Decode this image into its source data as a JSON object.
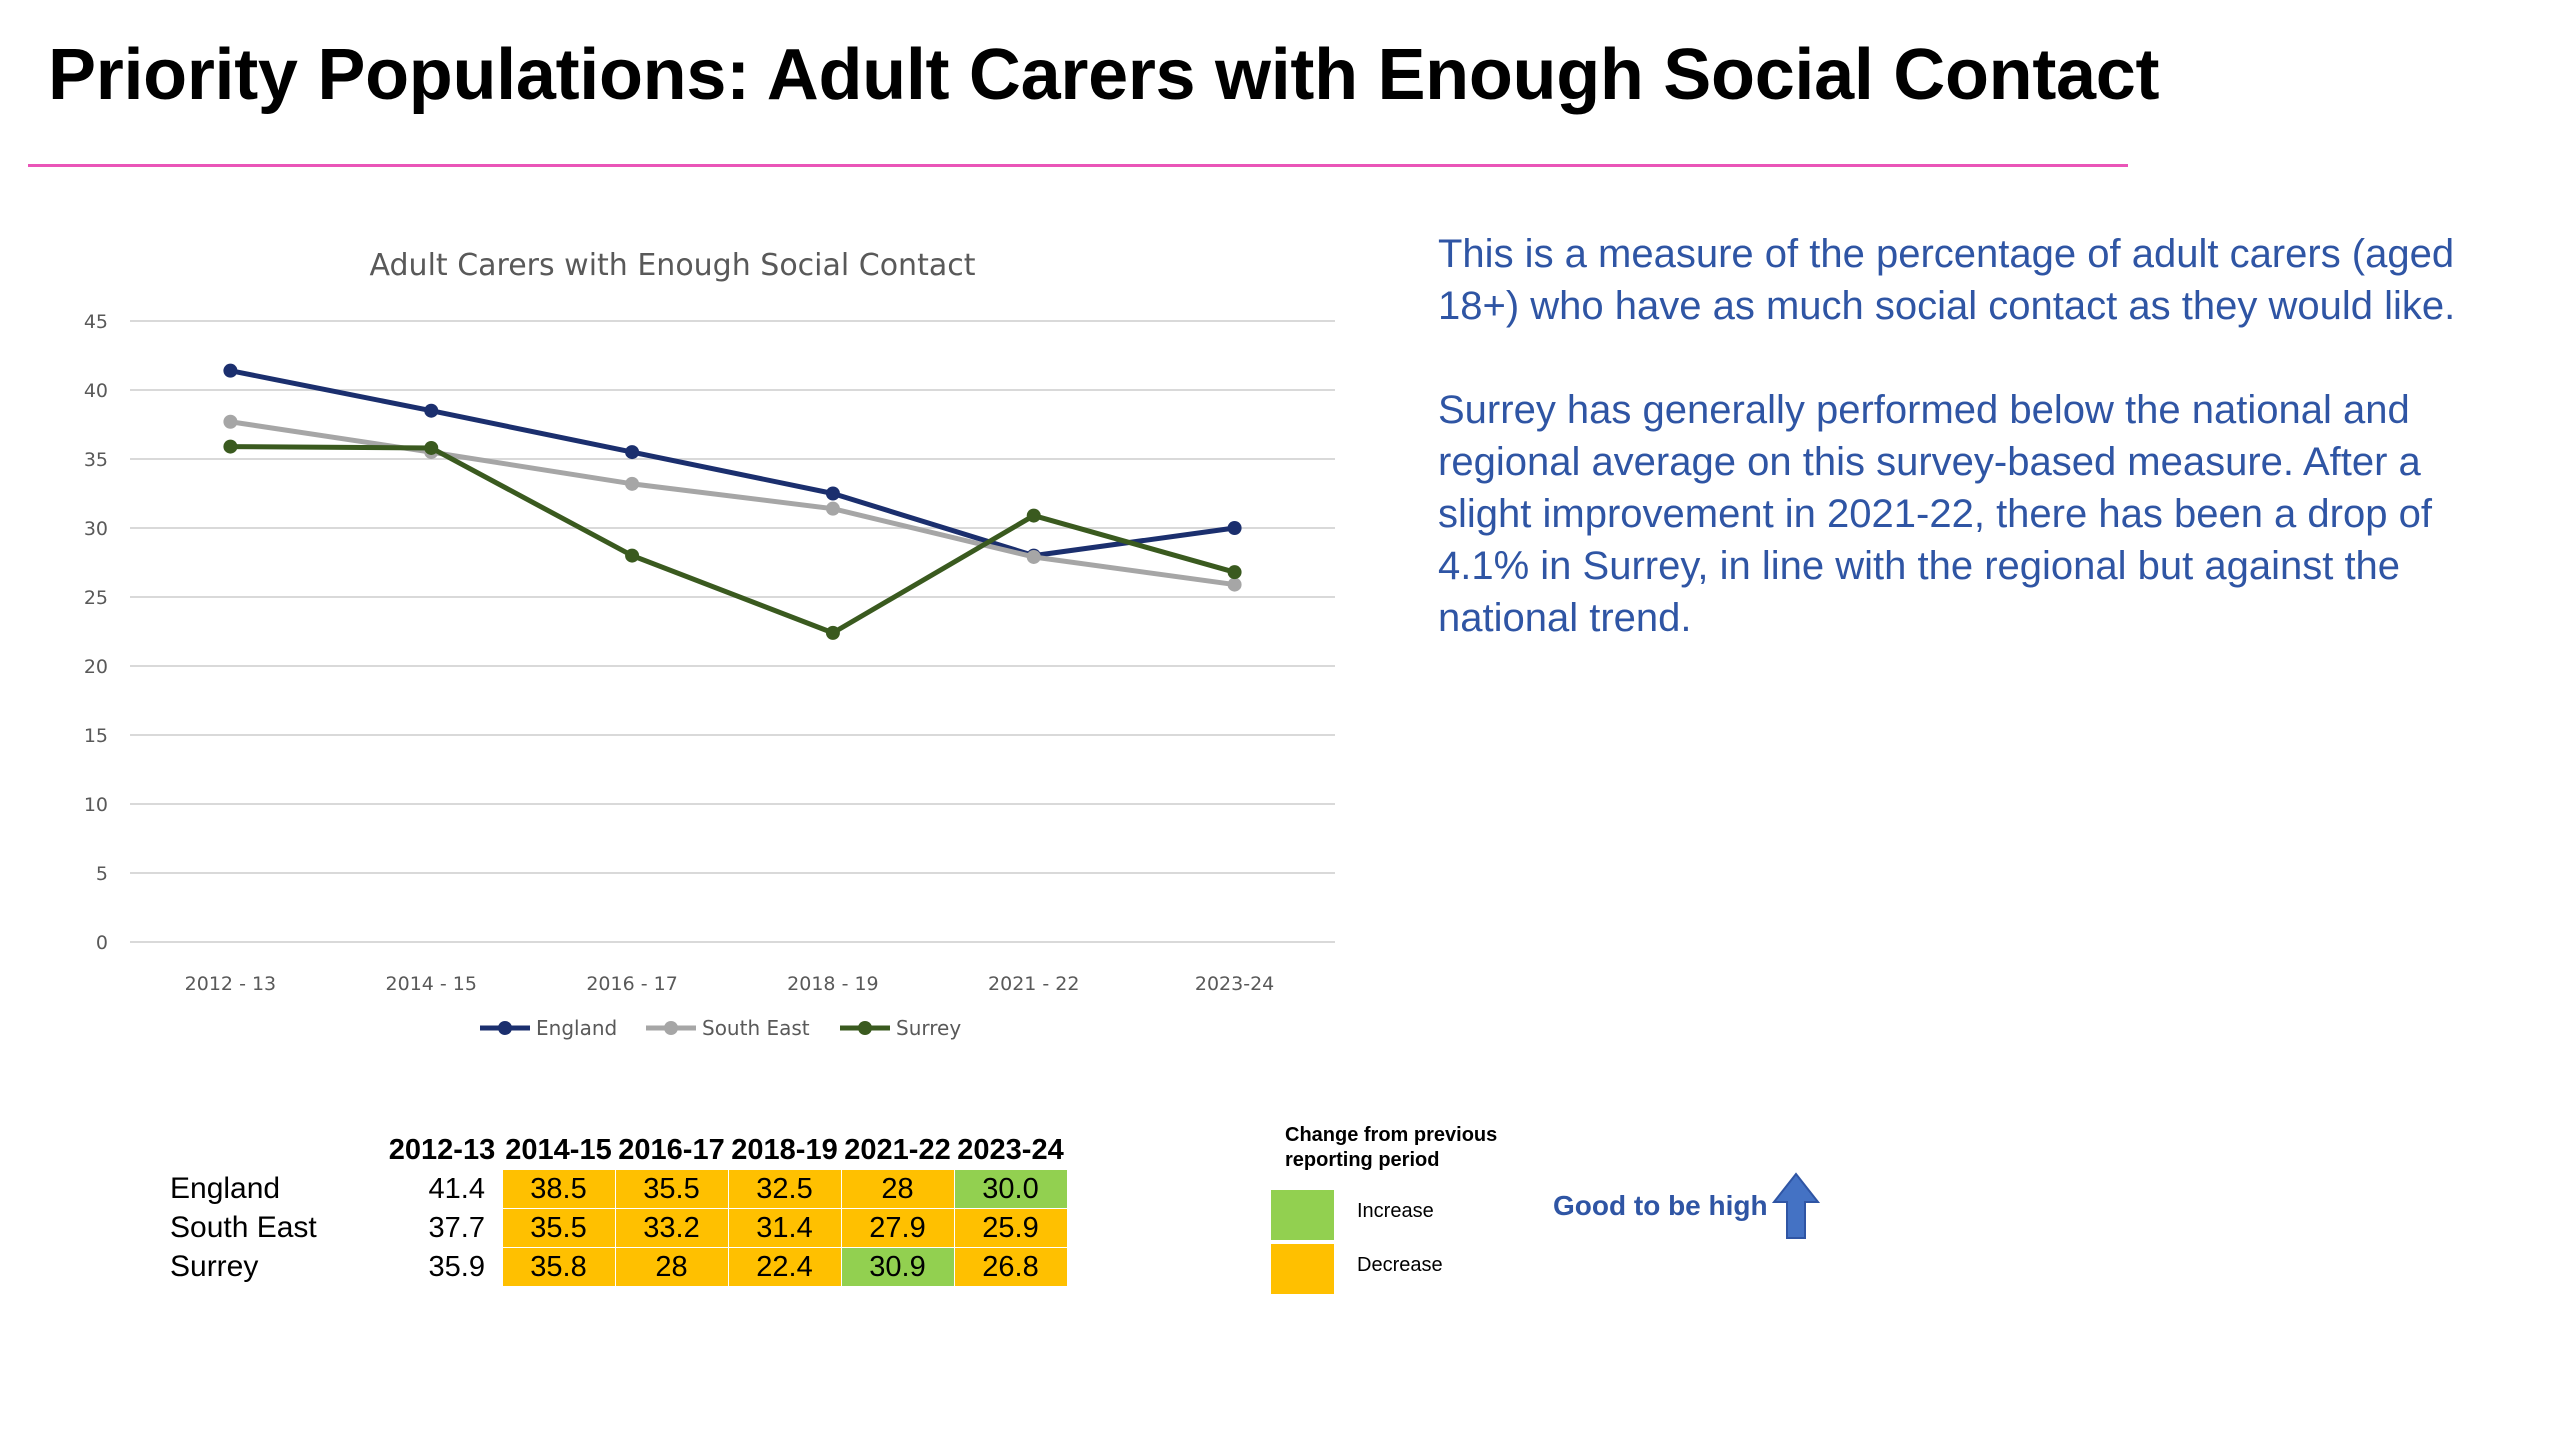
{
  "slide": {
    "title": "Priority Populations: Adult Carers with Enough Social Contact"
  },
  "description": {
    "paragraph1": "This is a measure of the percentage of adult carers (aged 18+) who have as much social contact as they would like.",
    "paragraph2": "Surrey has generally performed below the national and regional average on this survey-based measure. After a slight improvement in 2021-22, there has been a drop of 4.1% in Surrey, in line with the regional  but against the national trend."
  },
  "chart_data": {
    "type": "line",
    "title": "Adult Carers with Enough Social Contact",
    "categories": [
      "2012 - 13",
      "2014 - 15",
      "2016 - 17",
      "2018 - 19",
      "2021 - 22",
      "2023-24"
    ],
    "ylim": [
      0,
      45
    ],
    "yticks": [
      0,
      5,
      10,
      15,
      20,
      25,
      30,
      35,
      40,
      45
    ],
    "grid": true,
    "legend": "bottom",
    "series": [
      {
        "name": "England",
        "color": "#1b2f6e",
        "values": [
          41.4,
          38.5,
          35.5,
          32.5,
          28,
          30.0
        ]
      },
      {
        "name": "South East",
        "color": "#a6a6a6",
        "values": [
          37.7,
          35.5,
          33.2,
          31.4,
          27.9,
          25.9
        ]
      },
      {
        "name": "Surrey",
        "color": "#3a5a1f",
        "values": [
          35.9,
          35.8,
          28,
          22.4,
          30.9,
          26.8
        ]
      }
    ]
  },
  "table": {
    "headers": [
      "2012-13",
      "2014-15",
      "2016-17",
      "2018-19",
      "2021-22",
      "2023-24"
    ],
    "rows": [
      {
        "label": "England",
        "cells": [
          {
            "value": "41.4",
            "change": "none"
          },
          {
            "value": "38.5",
            "change": "decrease"
          },
          {
            "value": "35.5",
            "change": "decrease"
          },
          {
            "value": "32.5",
            "change": "decrease"
          },
          {
            "value": "28",
            "change": "decrease"
          },
          {
            "value": "30.0",
            "change": "increase"
          }
        ]
      },
      {
        "label": "South East",
        "cells": [
          {
            "value": "37.7",
            "change": "none"
          },
          {
            "value": "35.5",
            "change": "decrease"
          },
          {
            "value": "33.2",
            "change": "decrease"
          },
          {
            "value": "31.4",
            "change": "decrease"
          },
          {
            "value": "27.9",
            "change": "decrease"
          },
          {
            "value": "25.9",
            "change": "decrease"
          }
        ]
      },
      {
        "label": "Surrey",
        "cells": [
          {
            "value": "35.9",
            "change": "none"
          },
          {
            "value": "35.8",
            "change": "decrease"
          },
          {
            "value": "28",
            "change": "decrease"
          },
          {
            "value": "22.4",
            "change": "decrease"
          },
          {
            "value": "30.9",
            "change": "increase"
          },
          {
            "value": "26.8",
            "change": "decrease"
          }
        ]
      }
    ]
  },
  "key": {
    "title": "Change from previous reporting period",
    "increase_label": "Increase",
    "decrease_label": "Decrease",
    "increase_color": "#92d050",
    "decrease_color": "#ffc000"
  },
  "direction": {
    "label": "Good to be high",
    "arrow_color": "#4472c4"
  }
}
